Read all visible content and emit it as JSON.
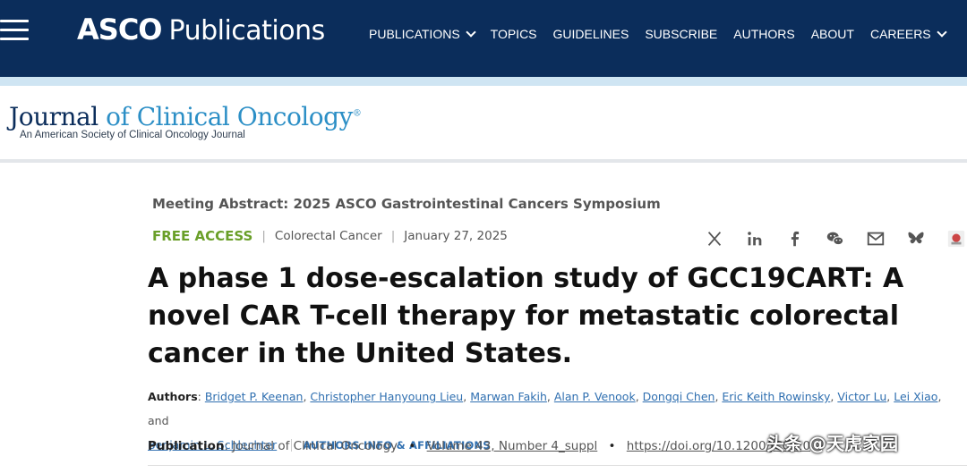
{
  "header": {
    "logo_bold": "ASCO",
    "logo_text": "Publications",
    "nav": [
      {
        "label": "PUBLICATIONS",
        "dropdown": true
      },
      {
        "label": "TOPICS",
        "dropdown": false
      },
      {
        "label": "GUIDELINES",
        "dropdown": false
      },
      {
        "label": "SUBSCRIBE",
        "dropdown": false
      },
      {
        "label": "AUTHORS",
        "dropdown": false
      },
      {
        "label": "ABOUT",
        "dropdown": false
      },
      {
        "label": "CAREERS",
        "dropdown": true
      }
    ]
  },
  "journal": {
    "title_part1": "Journal",
    "title_part2": "of Clinical Oncology",
    "trademark": "®",
    "subtitle": "An American Society of Clinical Oncology Journal"
  },
  "article": {
    "meeting": "Meeting Abstract: 2025 ASCO Gastrointestinal Cancers Symposium",
    "access": "FREE ACCESS",
    "topic": "Colorectal Cancer",
    "date": "January 27, 2025",
    "title": "A phase 1 dose-escalation study of GCC19CART: A novel CAR T-cell therapy for metastatic colorectal cancer in the United States.",
    "authors_label": "Authors",
    "authors": [
      "Bridget P. Keenan",
      "Christopher Hanyoung Lieu",
      "Marwan Fakih",
      "Alan P. Venook",
      "Dongqi Chen",
      "Eric Keith Rowinsky",
      "Victor Lu",
      "Lei Xiao",
      "Benjamin L. Schlechter"
    ],
    "and_word": "and",
    "affiliations_link": "AUTHORS INFO & AFFILIATIONS",
    "publication_label": "Publication",
    "publication_journal": "Journal of Clinical Oncology",
    "volume": "Volume 43, Number 4_suppl",
    "doi": "https://doi.org/10.1200/JCO.20"
  },
  "share_icons": [
    "x-icon",
    "linkedin-icon",
    "facebook-icon",
    "wechat-icon",
    "email-icon",
    "bluesky-icon",
    "more-icon"
  ],
  "watermark": "头条 @天虎家园",
  "colors": {
    "nav_bg": "#0b2d5b",
    "accent_blue": "#2c8fc6",
    "free_access_green": "#6a9f29",
    "link_blue": "#2f6fb0"
  }
}
